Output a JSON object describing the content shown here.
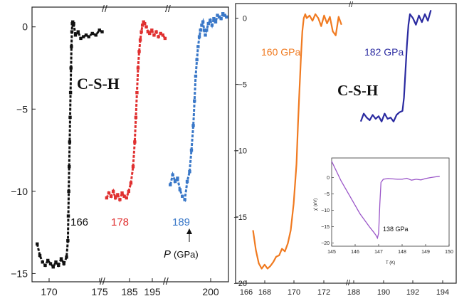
{
  "chart_data": [
    {
      "type": "scatter",
      "title": "",
      "label": "C-S-H",
      "xlabel": "",
      "ylabel": "",
      "ylim": [
        -15.5,
        1.2
      ],
      "yticks": [
        0,
        -5,
        -10,
        -15
      ],
      "xticks": [
        "170",
        "175",
        "185",
        "195",
        "200"
      ],
      "axis_break_labels": [
        "//",
        "//"
      ],
      "pressure_annotation": {
        "text": "P",
        "unit": "(GPa)"
      },
      "series": [
        {
          "name": "166",
          "color": "#111111",
          "x": [
            169.0,
            169.3,
            169.6,
            169.9,
            170.2,
            170.5,
            170.8,
            171.1,
            171.4,
            171.7,
            172.0,
            172.3,
            172.45,
            172.5,
            172.55,
            172.6,
            172.65,
            172.7,
            172.75,
            172.8,
            172.85,
            172.9,
            172.95,
            173.0,
            173.05,
            173.1,
            173.3,
            173.6,
            173.9,
            174.2,
            174.5,
            174.8,
            175.2,
            175.6,
            176.0,
            176.3
          ],
          "y": [
            -13.2,
            -13.9,
            -14.3,
            -14.5,
            -14.2,
            -14.4,
            -14.6,
            -14.3,
            -14.5,
            -14.1,
            -14.4,
            -14.0,
            -13.0,
            -11.5,
            -10.0,
            -8.5,
            -7.0,
            -5.5,
            -4.0,
            -2.5,
            -1.2,
            -0.3,
            0.2,
            0.3,
            0.1,
            0.2,
            -0.5,
            -0.3,
            -0.7,
            -0.6,
            -0.5,
            -0.6,
            -0.4,
            -0.5,
            -0.2,
            -0.3
          ]
        },
        {
          "name": "178",
          "color": "#e03030",
          "x": [
            177.0,
            177.4,
            177.8,
            178.2,
            178.6,
            179.0,
            179.4,
            179.8,
            180.2,
            180.6,
            181.0,
            181.4,
            181.8,
            182.1,
            182.3,
            182.5,
            182.7,
            182.9,
            183.1,
            183.3,
            183.5,
            183.7,
            183.9,
            184.2,
            184.5,
            184.8,
            185.2,
            185.6,
            186.0,
            186.4,
            186.8,
            187.2,
            187.6
          ],
          "y": [
            -10.4,
            -10.1,
            -10.3,
            -10.0,
            -10.4,
            -10.2,
            -10.5,
            -10.1,
            -10.3,
            -10.4,
            -10.0,
            -9.5,
            -8.5,
            -7.0,
            -5.5,
            -4.0,
            -2.5,
            -1.5,
            -0.8,
            -0.3,
            0.1,
            0.3,
            0.2,
            0.0,
            -0.3,
            -0.4,
            -0.2,
            -0.5,
            -0.3,
            -0.6,
            -0.4,
            -0.5,
            -0.7
          ]
        },
        {
          "name": "189",
          "color": "#3a78c8",
          "x": [
            192.0,
            192.4,
            192.8,
            193.2,
            193.6,
            194.0,
            194.4,
            194.8,
            195.2,
            195.5,
            195.8,
            196.0,
            196.2,
            196.4,
            196.6,
            196.8,
            197.0,
            197.2,
            197.4,
            197.6,
            197.8,
            198.0,
            198.3,
            198.6,
            198.9,
            199.2,
            199.5,
            199.8,
            200.1,
            200.4,
            200.7,
            201.0,
            201.3
          ],
          "y": [
            -9.6,
            -9.0,
            -9.4,
            -9.2,
            -9.9,
            -10.3,
            -10.5,
            -9.4,
            -8.8,
            -7.5,
            -6.0,
            -4.5,
            -3.0,
            -2.0,
            -1.2,
            -0.6,
            -0.2,
            0.1,
            0.3,
            -0.2,
            -0.5,
            -0.2,
            0.2,
            0.4,
            0.1,
            0.5,
            0.3,
            0.7,
            0.6,
            0.5,
            0.8,
            0.7,
            0.6
          ]
        }
      ]
    },
    {
      "type": "line",
      "title": "",
      "label": "C-S-H",
      "xlabel": "",
      "ylabel": "",
      "ylim": [
        -20,
        1
      ],
      "yticks": [
        0,
        -5,
        -10,
        -15,
        -20
      ],
      "xticks": [
        "166",
        "168",
        "170",
        "172",
        "188",
        "190",
        "192",
        "194"
      ],
      "axis_break_labels": [
        "//"
      ],
      "series": [
        {
          "name": "160 GPa",
          "color": "#f07a20",
          "x": [
            166.7,
            166.9,
            167.1,
            167.3,
            167.5,
            167.7,
            167.9,
            168.1,
            168.3,
            168.5,
            168.7,
            168.9,
            169.1,
            169.3,
            169.5,
            169.7,
            169.8,
            169.9,
            170.0,
            170.1,
            170.2,
            170.3,
            170.4,
            170.6,
            170.8,
            171.0,
            171.2,
            171.4,
            171.6,
            171.8,
            172.0,
            172.2,
            172.4,
            172.6,
            172.8
          ],
          "y": [
            -16.0,
            -17.5,
            -18.5,
            -18.9,
            -18.6,
            -18.9,
            -18.7,
            -18.4,
            -18.0,
            -17.9,
            -17.4,
            -17.6,
            -17.0,
            -16.0,
            -14.0,
            -11.0,
            -8.0,
            -5.5,
            -3.0,
            -1.0,
            0.0,
            0.3,
            0.0,
            0.2,
            -0.2,
            0.3,
            0.0,
            -0.6,
            0.2,
            -0.4,
            0.1,
            -1.0,
            -1.3,
            0.1,
            -0.5
          ]
        },
        {
          "name": "182 GPa",
          "color": "#2a2aa0",
          "x": [
            188.1,
            188.3,
            188.5,
            188.7,
            188.9,
            189.1,
            189.3,
            189.5,
            189.7,
            189.9,
            190.1,
            190.3,
            190.5,
            190.7,
            190.9,
            191.0,
            191.1,
            191.2,
            191.3,
            191.4,
            191.6,
            191.8,
            192.0,
            192.2,
            192.4,
            192.6,
            192.8
          ],
          "y": [
            -7.8,
            -7.2,
            -7.5,
            -7.7,
            -7.3,
            -7.6,
            -7.4,
            -7.8,
            -7.2,
            -7.6,
            -7.5,
            -7.8,
            -7.3,
            -7.1,
            -7.0,
            -6.0,
            -4.0,
            -2.0,
            -0.5,
            0.3,
            0.0,
            -0.5,
            0.2,
            -0.3,
            0.3,
            -0.2,
            0.6
          ]
        }
      ]
    },
    {
      "type": "line",
      "title": "",
      "label": "138 GPa",
      "xlabel": "T (K)",
      "ylabel": "χ' (nV)",
      "xlim": [
        145,
        150
      ],
      "ylim": [
        -21,
        2
      ],
      "xticks": [
        145,
        146,
        147,
        148,
        149,
        150
      ],
      "yticks": [
        0,
        -5,
        -10,
        -15,
        -20
      ],
      "series": [
        {
          "name": "138 GPa",
          "color": "#9a55c8",
          "x": [
            145.0,
            145.2,
            145.4,
            145.6,
            145.8,
            146.0,
            146.2,
            146.4,
            146.6,
            146.8,
            146.9,
            146.95,
            147.0,
            147.05,
            147.1,
            147.2,
            147.4,
            147.6,
            147.8,
            148.0,
            148.2,
            148.4,
            148.6,
            148.8,
            149.0,
            149.2,
            149.4,
            149.6
          ],
          "y": [
            5.0,
            2.0,
            -1.0,
            -3.5,
            -6.0,
            -8.5,
            -11.0,
            -13.0,
            -15.0,
            -16.8,
            -17.8,
            -18.5,
            -17.0,
            -8.0,
            -1.5,
            -0.5,
            -0.3,
            -0.4,
            -0.5,
            -0.5,
            -0.2,
            -0.8,
            -0.5,
            -0.7,
            -0.3,
            0.0,
            0.2,
            0.4
          ]
        }
      ]
    }
  ]
}
